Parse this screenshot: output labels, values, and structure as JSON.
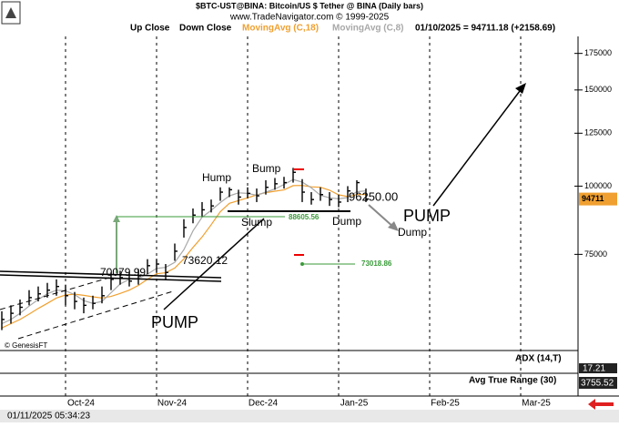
{
  "chart_data": {
    "type": "ohlc",
    "title": "$BTC-UST@BINA:  Bitcoin/US $ Tether @ BINA  (Daily bars)",
    "subtitle": "www.TradeNavigator.com © 1999-2025",
    "bar_legend": [
      "Up Close",
      "Down Close"
    ],
    "quote": "01/10/2025 = 94711.18 (+2158.69)",
    "color": "#000000",
    "categories": [
      null,
      null,
      null,
      null,
      null,
      null,
      null,
      "Oct-24",
      null,
      null,
      null,
      null,
      null,
      null,
      null,
      null,
      null,
      "Nov-24",
      null,
      null,
      null,
      null,
      null,
      null,
      null,
      null,
      null,
      "Dec-24",
      null,
      null,
      null,
      null,
      null,
      null,
      null,
      null,
      null,
      "Jan-25",
      null,
      null,
      null,
      null,
      null,
      null,
      null,
      null,
      null,
      "Feb-25",
      null,
      null,
      null,
      null,
      null,
      null,
      null,
      null,
      null,
      "Mar-25",
      null,
      null,
      null,
      null,
      null
    ],
    "high": [
      59000,
      60500,
      62000,
      64500,
      65500,
      66500,
      67500,
      66000,
      64000,
      62500,
      63000,
      65500,
      69500,
      70000,
      69500,
      70500,
      73500,
      73620,
      72000,
      78500,
      87000,
      91000,
      93500,
      94500,
      99500,
      99500,
      98500,
      99500,
      99000,
      102500,
      103500,
      104000,
      108000,
      103000,
      97500,
      99500,
      97500,
      96500,
      100000,
      102500,
      99000,
      null,
      null,
      null,
      null,
      null,
      null,
      null,
      null,
      null,
      null,
      null,
      null,
      null,
      null,
      null,
      null,
      null,
      null,
      null,
      null,
      null,
      null
    ],
    "low": [
      54500,
      56000,
      58000,
      60500,
      61500,
      62500,
      63000,
      60500,
      59500,
      58500,
      59500,
      61000,
      64500,
      66000,
      65500,
      66000,
      69000,
      69500,
      67500,
      73000,
      80500,
      85500,
      88000,
      89500,
      94000,
      95500,
      92500,
      95000,
      93500,
      96500,
      98500,
      99000,
      101500,
      93500,
      92500,
      94000,
      92000,
      91500,
      93500,
      96500,
      93500,
      null,
      null,
      null,
      null,
      null,
      null,
      null,
      null,
      null,
      null,
      null,
      null,
      null,
      null,
      null,
      null,
      null,
      null,
      null,
      null,
      null,
      null
    ],
    "close": [
      57000,
      58500,
      60000,
      62500,
      63500,
      64500,
      65500,
      63000,
      61500,
      60500,
      61000,
      63000,
      67500,
      68000,
      67000,
      68500,
      71500,
      72000,
      69500,
      76000,
      84000,
      88500,
      90500,
      92000,
      97500,
      98500,
      95500,
      97000,
      96000,
      99500,
      101000,
      101500,
      106000,
      97500,
      94500,
      96500,
      94500,
      93500,
      98000,
      101500,
      94711,
      null,
      null,
      null,
      null,
      null,
      null,
      null,
      null,
      null,
      null,
      null,
      null,
      null,
      null,
      null,
      null,
      null,
      null,
      null,
      null,
      null,
      null
    ],
    "last_label": "94711",
    "series": [
      {
        "name": "MovingAvg (C,18)",
        "color": "#f0a030",
        "values": [
          55000,
          56000,
          57000,
          58300,
          59700,
          61000,
          62400,
          63200,
          63400,
          63100,
          62700,
          62400,
          62800,
          63600,
          64500,
          65800,
          67500,
          69100,
          69400,
          70800,
          73600,
          77200,
          80700,
          85000,
          89800,
          93000,
          94100,
          95200,
          96400,
          97300,
          97900,
          98400,
          100200,
          100300,
          99700,
          99500,
          98300,
          96400,
          95700,
          96500,
          96500,
          null,
          null,
          null,
          null,
          null,
          null,
          null,
          null,
          null,
          null,
          null,
          null,
          null,
          null,
          null,
          null,
          null,
          null,
          null,
          null,
          null,
          null
        ]
      },
      {
        "name": "MovingAvg (C,8)",
        "color": "#a8a8a8",
        "values": [
          56000,
          57000,
          58500,
          60300,
          62000,
          63500,
          64500,
          64300,
          63300,
          61700,
          61000,
          61500,
          63800,
          66200,
          67500,
          67800,
          69000,
          70700,
          71000,
          72500,
          76500,
          82800,
          87700,
          90300,
          93300,
          96000,
          97200,
          97000,
          96200,
          97500,
          98800,
          100700,
          102800,
          101700,
          99300,
          96200,
          95200,
          94800,
          95300,
          97700,
          98000,
          null,
          null,
          null,
          null,
          null,
          null,
          null,
          null,
          null,
          null,
          null,
          null,
          null,
          null,
          null,
          null,
          null,
          null,
          null,
          null,
          null,
          null
        ]
      }
    ],
    "ylim": [
      50000,
      188000
    ],
    "yticks": [
      75000,
      100000,
      125000,
      150000,
      175000
    ],
    "log_scale": true,
    "grid": true,
    "annotations": [
      "Hump",
      "Bump",
      "Slump",
      "Dump",
      "Dump",
      "PUMP",
      "PUMP",
      "70079.99",
      "73620.12",
      "96250.00",
      "88605.56",
      "73018.86"
    ],
    "copyright": "© GenesisFT",
    "adx_label": "ADX (14,T)",
    "adx_value": 17.21,
    "atr_label": "Avg True Range (30)",
    "atr_value": 3755.52,
    "timestamp": "01/11/2025 05:34:23"
  }
}
